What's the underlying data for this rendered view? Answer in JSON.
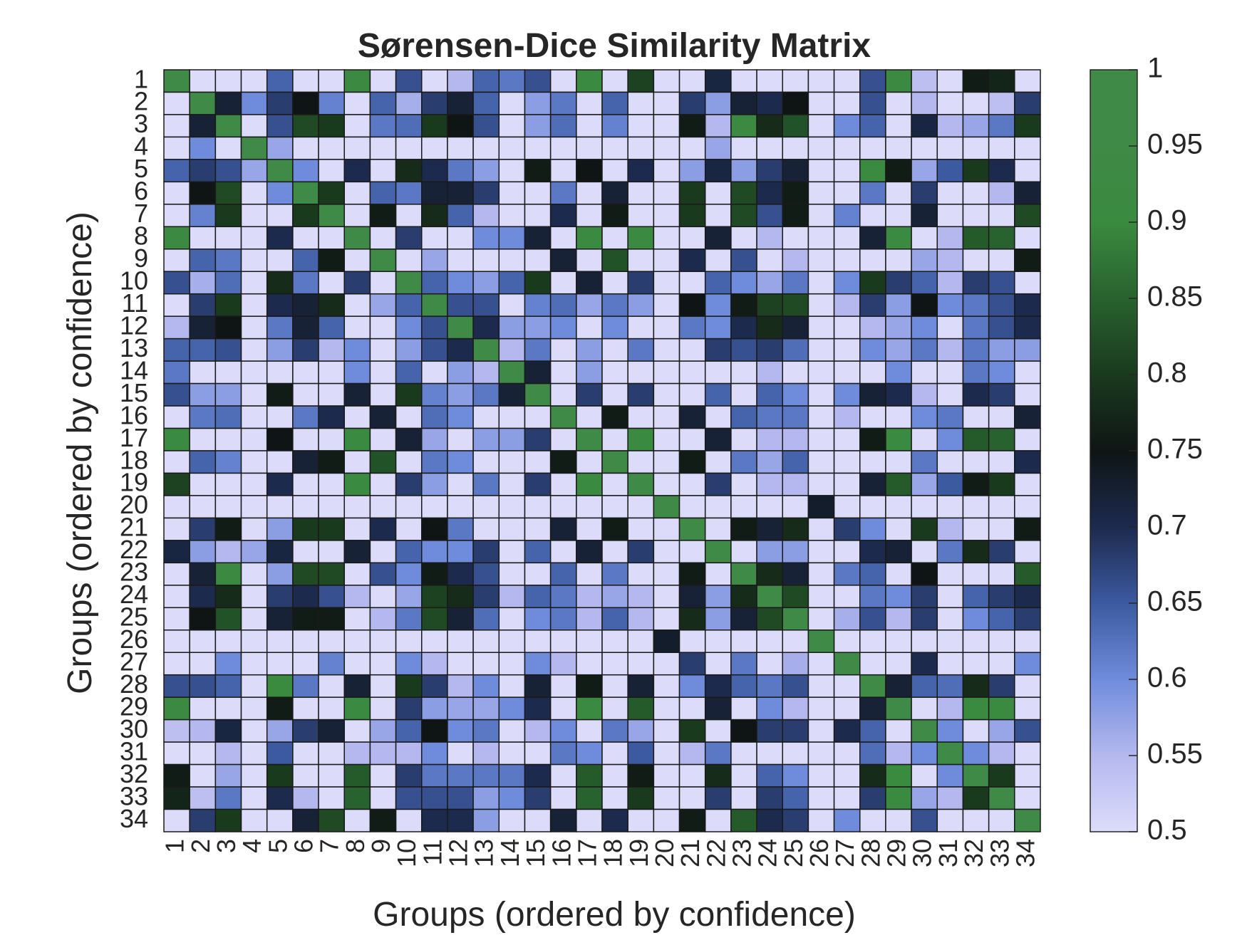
{
  "chart_data": {
    "type": "heatmap",
    "title": "Sørensen-Dice Similarity Matrix",
    "xlabel": "Groups (ordered by confidence)",
    "ylabel": "Groups (ordered by confidence)",
    "categories": [
      "1",
      "2",
      "3",
      "4",
      "5",
      "6",
      "7",
      "8",
      "9",
      "10",
      "11",
      "12",
      "13",
      "14",
      "15",
      "16",
      "17",
      "18",
      "19",
      "20",
      "21",
      "22",
      "23",
      "24",
      "25",
      "26",
      "27",
      "28",
      "29",
      "30",
      "31",
      "32",
      "33",
      "34"
    ],
    "clim": [
      0.5,
      1
    ],
    "colorbar": {
      "ticks": [
        0.5,
        0.55,
        0.6,
        0.65,
        0.7,
        0.75,
        0.8,
        0.85,
        0.9,
        0.95,
        1
      ],
      "tick_labels": [
        "0.5",
        "0.55",
        "0.6",
        "0.65",
        "0.7",
        "0.75",
        "0.8",
        "0.85",
        "0.9",
        "0.95",
        "1"
      ],
      "colormap": [
        [
          0.5,
          "#dcdcfa"
        ],
        [
          0.55,
          "#b4b8ee"
        ],
        [
          0.6,
          "#6f8cdc"
        ],
        [
          0.65,
          "#3c5aa0"
        ],
        [
          0.7,
          "#1c2a4e"
        ],
        [
          0.75,
          "#0f1514"
        ],
        [
          0.8,
          "#1a3a1e"
        ],
        [
          0.85,
          "#28622e"
        ],
        [
          0.9,
          "#3a8a40"
        ],
        [
          0.95,
          "#3f8a46"
        ],
        [
          1.0,
          "#3f8a46"
        ]
      ]
    },
    "matrix": [
      [
        1,
        0.5,
        0.5,
        0.5,
        0.64,
        0.5,
        0.5,
        0.92,
        0.5,
        0.66,
        0.5,
        0.55,
        0.64,
        0.62,
        0.66,
        0.5,
        0.91,
        0.5,
        0.81,
        0.5,
        0.5,
        0.71,
        0.5,
        0.5,
        0.5,
        0.5,
        0.5,
        0.66,
        0.92,
        0.54,
        0.5,
        0.76,
        0.77,
        0.5
      ],
      [
        0.5,
        1,
        0.72,
        0.6,
        0.68,
        0.75,
        0.61,
        0.5,
        0.64,
        0.56,
        0.68,
        0.72,
        0.64,
        0.5,
        0.58,
        0.62,
        0.5,
        0.64,
        0.5,
        0.5,
        0.68,
        0.58,
        0.72,
        0.7,
        0.75,
        0.5,
        0.5,
        0.66,
        0.5,
        0.55,
        0.5,
        0.5,
        0.54,
        0.68
      ],
      [
        0.5,
        0.72,
        1,
        0.5,
        0.66,
        0.82,
        0.8,
        0.5,
        0.62,
        0.63,
        0.8,
        0.75,
        0.66,
        0.5,
        0.58,
        0.63,
        0.5,
        0.61,
        0.5,
        0.5,
        0.76,
        0.55,
        0.92,
        0.78,
        0.83,
        0.5,
        0.6,
        0.64,
        0.5,
        0.71,
        0.55,
        0.57,
        0.62,
        0.8
      ],
      [
        0.5,
        0.6,
        0.5,
        1,
        0.57,
        0.5,
        0.5,
        0.5,
        0.5,
        0.5,
        0.5,
        0.5,
        0.5,
        0.5,
        0.5,
        0.5,
        0.5,
        0.5,
        0.5,
        0.5,
        0.5,
        0.57,
        0.5,
        0.5,
        0.5,
        0.5,
        0.5,
        0.5,
        0.5,
        0.5,
        0.5,
        0.5,
        0.5,
        0.5
      ],
      [
        0.64,
        0.68,
        0.66,
        0.57,
        1,
        0.6,
        0.5,
        0.7,
        0.5,
        0.78,
        0.7,
        0.62,
        0.58,
        0.5,
        0.76,
        0.5,
        0.75,
        0.5,
        0.7,
        0.5,
        0.58,
        0.71,
        0.58,
        0.68,
        0.72,
        0.5,
        0.5,
        0.9,
        0.76,
        0.57,
        0.65,
        0.8,
        0.7,
        0.5
      ],
      [
        0.5,
        0.75,
        0.82,
        0.5,
        0.6,
        1,
        0.8,
        0.5,
        0.64,
        0.62,
        0.72,
        0.72,
        0.68,
        0.5,
        0.5,
        0.62,
        0.5,
        0.72,
        0.5,
        0.5,
        0.8,
        0.5,
        0.82,
        0.7,
        0.76,
        0.5,
        0.5,
        0.62,
        0.5,
        0.68,
        0.5,
        0.5,
        0.55,
        0.72
      ],
      [
        0.5,
        0.61,
        0.8,
        0.5,
        0.5,
        0.8,
        1,
        0.5,
        0.76,
        0.5,
        0.78,
        0.64,
        0.55,
        0.5,
        0.5,
        0.7,
        0.5,
        0.76,
        0.5,
        0.5,
        0.8,
        0.5,
        0.82,
        0.66,
        0.76,
        0.5,
        0.61,
        0.5,
        0.5,
        0.72,
        0.5,
        0.5,
        0.5,
        0.82
      ],
      [
        0.92,
        0.5,
        0.5,
        0.5,
        0.7,
        0.5,
        0.5,
        1,
        0.5,
        0.68,
        0.5,
        0.5,
        0.6,
        0.6,
        0.72,
        0.5,
        0.91,
        0.5,
        0.91,
        0.5,
        0.5,
        0.72,
        0.5,
        0.55,
        0.5,
        0.5,
        0.5,
        0.72,
        0.91,
        0.5,
        0.55,
        0.84,
        0.85,
        0.5
      ],
      [
        0.5,
        0.64,
        0.62,
        0.5,
        0.5,
        0.64,
        0.76,
        0.5,
        1,
        0.5,
        0.57,
        0.5,
        0.5,
        0.5,
        0.5,
        0.72,
        0.5,
        0.83,
        0.5,
        0.5,
        0.7,
        0.5,
        0.66,
        0.5,
        0.55,
        0.5,
        0.5,
        0.5,
        0.5,
        0.57,
        0.55,
        0.5,
        0.5,
        0.76
      ],
      [
        0.66,
        0.56,
        0.63,
        0.5,
        0.78,
        0.62,
        0.5,
        0.68,
        0.5,
        1,
        0.64,
        0.6,
        0.58,
        0.64,
        0.8,
        0.5,
        0.72,
        0.5,
        0.68,
        0.5,
        0.5,
        0.64,
        0.6,
        0.57,
        0.62,
        0.5,
        0.6,
        0.8,
        0.68,
        0.64,
        0.55,
        0.68,
        0.66,
        0.5
      ],
      [
        0.5,
        0.68,
        0.8,
        0.5,
        0.7,
        0.72,
        0.78,
        0.5,
        0.57,
        0.64,
        1,
        0.66,
        0.66,
        0.5,
        0.61,
        0.63,
        0.57,
        0.62,
        0.58,
        0.5,
        0.75,
        0.6,
        0.76,
        0.81,
        0.82,
        0.5,
        0.55,
        0.68,
        0.58,
        0.75,
        0.6,
        0.62,
        0.66,
        0.7
      ],
      [
        0.55,
        0.72,
        0.75,
        0.5,
        0.62,
        0.72,
        0.64,
        0.5,
        0.5,
        0.6,
        0.66,
        1,
        0.7,
        0.58,
        0.58,
        0.6,
        0.5,
        0.6,
        0.5,
        0.5,
        0.62,
        0.6,
        0.7,
        0.78,
        0.72,
        0.5,
        0.5,
        0.55,
        0.57,
        0.6,
        0.5,
        0.62,
        0.66,
        0.7
      ],
      [
        0.64,
        0.64,
        0.66,
        0.5,
        0.58,
        0.68,
        0.55,
        0.6,
        0.5,
        0.58,
        0.66,
        0.7,
        1,
        0.55,
        0.62,
        0.5,
        0.58,
        0.5,
        0.62,
        0.5,
        0.5,
        0.68,
        0.66,
        0.68,
        0.63,
        0.5,
        0.5,
        0.6,
        0.57,
        0.62,
        0.55,
        0.62,
        0.58,
        0.58
      ],
      [
        0.62,
        0.5,
        0.5,
        0.5,
        0.5,
        0.5,
        0.5,
        0.6,
        0.5,
        0.64,
        0.5,
        0.58,
        0.55,
        1,
        0.72,
        0.5,
        0.58,
        0.5,
        0.5,
        0.5,
        0.5,
        0.5,
        0.5,
        0.55,
        0.5,
        0.5,
        0.5,
        0.5,
        0.6,
        0.5,
        0.5,
        0.62,
        0.6,
        0.5
      ],
      [
        0.66,
        0.58,
        0.58,
        0.5,
        0.76,
        0.5,
        0.5,
        0.72,
        0.5,
        0.8,
        0.61,
        0.58,
        0.62,
        0.72,
        1,
        0.5,
        0.68,
        0.5,
        0.68,
        0.5,
        0.5,
        0.64,
        0.5,
        0.64,
        0.6,
        0.5,
        0.6,
        0.72,
        0.7,
        0.55,
        0.5,
        0.7,
        0.68,
        0.5
      ],
      [
        0.5,
        0.62,
        0.63,
        0.5,
        0.5,
        0.62,
        0.7,
        0.5,
        0.72,
        0.5,
        0.63,
        0.6,
        0.5,
        0.5,
        0.5,
        1,
        0.5,
        0.76,
        0.5,
        0.5,
        0.72,
        0.5,
        0.64,
        0.62,
        0.62,
        0.5,
        0.55,
        0.5,
        0.5,
        0.6,
        0.62,
        0.5,
        0.5,
        0.72
      ],
      [
        0.91,
        0.5,
        0.5,
        0.5,
        0.75,
        0.5,
        0.5,
        0.91,
        0.5,
        0.72,
        0.57,
        0.5,
        0.58,
        0.58,
        0.68,
        0.5,
        1,
        0.5,
        0.91,
        0.5,
        0.5,
        0.72,
        0.5,
        0.55,
        0.55,
        0.5,
        0.5,
        0.76,
        0.91,
        0.5,
        0.6,
        0.84,
        0.85,
        0.5
      ],
      [
        0.5,
        0.64,
        0.61,
        0.5,
        0.5,
        0.72,
        0.76,
        0.5,
        0.83,
        0.5,
        0.62,
        0.6,
        0.5,
        0.5,
        0.5,
        0.76,
        0.5,
        1,
        0.5,
        0.5,
        0.76,
        0.5,
        0.62,
        0.57,
        0.64,
        0.5,
        0.5,
        0.5,
        0.5,
        0.62,
        0.5,
        0.5,
        0.5,
        0.7
      ],
      [
        0.81,
        0.5,
        0.5,
        0.5,
        0.7,
        0.5,
        0.5,
        0.91,
        0.5,
        0.68,
        0.58,
        0.5,
        0.62,
        0.5,
        0.68,
        0.5,
        0.91,
        0.5,
        1,
        0.5,
        0.5,
        0.68,
        0.5,
        0.55,
        0.55,
        0.5,
        0.5,
        0.72,
        0.84,
        0.57,
        0.65,
        0.76,
        0.8,
        0.5
      ],
      [
        0.5,
        0.5,
        0.5,
        0.5,
        0.5,
        0.5,
        0.5,
        0.5,
        0.5,
        0.5,
        0.5,
        0.5,
        0.5,
        0.5,
        0.5,
        0.5,
        0.5,
        0.5,
        0.5,
        1,
        0.5,
        0.5,
        0.5,
        0.5,
        0.5,
        0.73,
        0.5,
        0.5,
        0.5,
        0.5,
        0.5,
        0.5,
        0.5,
        0.5
      ],
      [
        0.5,
        0.68,
        0.76,
        0.5,
        0.58,
        0.8,
        0.8,
        0.5,
        0.7,
        0.5,
        0.75,
        0.62,
        0.5,
        0.5,
        0.5,
        0.72,
        0.5,
        0.76,
        0.5,
        0.5,
        1,
        0.5,
        0.76,
        0.72,
        0.78,
        0.5,
        0.68,
        0.6,
        0.5,
        0.8,
        0.55,
        0.5,
        0.5,
        0.76
      ],
      [
        0.71,
        0.58,
        0.55,
        0.57,
        0.71,
        0.5,
        0.5,
        0.72,
        0.5,
        0.64,
        0.6,
        0.6,
        0.68,
        0.5,
        0.64,
        0.5,
        0.72,
        0.5,
        0.68,
        0.5,
        0.5,
        1,
        0.5,
        0.58,
        0.58,
        0.5,
        0.5,
        0.7,
        0.72,
        0.5,
        0.62,
        0.78,
        0.68,
        0.5
      ],
      [
        0.5,
        0.72,
        0.92,
        0.5,
        0.58,
        0.82,
        0.82,
        0.5,
        0.66,
        0.6,
        0.76,
        0.7,
        0.66,
        0.5,
        0.5,
        0.64,
        0.5,
        0.62,
        0.5,
        0.5,
        0.76,
        0.5,
        1,
        0.78,
        0.72,
        0.5,
        0.62,
        0.64,
        0.5,
        0.75,
        0.5,
        0.5,
        0.5,
        0.84
      ],
      [
        0.5,
        0.7,
        0.78,
        0.5,
        0.68,
        0.7,
        0.66,
        0.55,
        0.5,
        0.57,
        0.81,
        0.78,
        0.68,
        0.55,
        0.64,
        0.62,
        0.55,
        0.57,
        0.55,
        0.5,
        0.72,
        0.58,
        0.78,
        1,
        0.82,
        0.5,
        0.5,
        0.62,
        0.6,
        0.68,
        0.5,
        0.64,
        0.68,
        0.7
      ],
      [
        0.5,
        0.75,
        0.83,
        0.5,
        0.72,
        0.76,
        0.76,
        0.5,
        0.55,
        0.62,
        0.82,
        0.72,
        0.63,
        0.5,
        0.6,
        0.62,
        0.55,
        0.64,
        0.55,
        0.5,
        0.78,
        0.58,
        0.72,
        0.82,
        1,
        0.5,
        0.56,
        0.66,
        0.55,
        0.68,
        0.5,
        0.6,
        0.64,
        0.68
      ],
      [
        0.5,
        0.5,
        0.5,
        0.5,
        0.5,
        0.5,
        0.5,
        0.5,
        0.5,
        0.5,
        0.5,
        0.5,
        0.5,
        0.5,
        0.5,
        0.5,
        0.5,
        0.5,
        0.5,
        0.73,
        0.5,
        0.5,
        0.5,
        0.5,
        0.5,
        1,
        0.5,
        0.5,
        0.5,
        0.5,
        0.5,
        0.5,
        0.5,
        0.5
      ],
      [
        0.5,
        0.5,
        0.6,
        0.5,
        0.5,
        0.5,
        0.61,
        0.5,
        0.5,
        0.6,
        0.55,
        0.5,
        0.5,
        0.5,
        0.6,
        0.55,
        0.5,
        0.5,
        0.5,
        0.5,
        0.68,
        0.5,
        0.62,
        0.5,
        0.56,
        0.5,
        1,
        0.5,
        0.5,
        0.7,
        0.5,
        0.5,
        0.5,
        0.6
      ],
      [
        0.66,
        0.66,
        0.64,
        0.5,
        0.9,
        0.62,
        0.5,
        0.72,
        0.5,
        0.8,
        0.68,
        0.55,
        0.6,
        0.5,
        0.72,
        0.5,
        0.76,
        0.5,
        0.72,
        0.5,
        0.6,
        0.7,
        0.64,
        0.62,
        0.66,
        0.5,
        0.5,
        1,
        0.72,
        0.64,
        0.63,
        0.78,
        0.68,
        0.5
      ],
      [
        0.92,
        0.5,
        0.5,
        0.5,
        0.76,
        0.5,
        0.5,
        0.91,
        0.5,
        0.68,
        0.58,
        0.57,
        0.57,
        0.6,
        0.7,
        0.5,
        0.91,
        0.5,
        0.84,
        0.5,
        0.5,
        0.72,
        0.5,
        0.6,
        0.55,
        0.5,
        0.5,
        0.72,
        1,
        0.5,
        0.55,
        0.9,
        0.9,
        0.5
      ],
      [
        0.54,
        0.55,
        0.71,
        0.5,
        0.57,
        0.68,
        0.72,
        0.5,
        0.57,
        0.64,
        0.75,
        0.6,
        0.62,
        0.5,
        0.55,
        0.6,
        0.5,
        0.62,
        0.57,
        0.5,
        0.8,
        0.5,
        0.75,
        0.68,
        0.68,
        0.5,
        0.7,
        0.64,
        0.5,
        1,
        0.6,
        0.5,
        0.57,
        0.66
      ],
      [
        0.5,
        0.5,
        0.55,
        0.5,
        0.65,
        0.5,
        0.5,
        0.55,
        0.55,
        0.55,
        0.6,
        0.5,
        0.55,
        0.5,
        0.5,
        0.62,
        0.6,
        0.5,
        0.65,
        0.5,
        0.55,
        0.62,
        0.5,
        0.5,
        0.5,
        0.5,
        0.5,
        0.63,
        0.55,
        0.6,
        1,
        0.6,
        0.55,
        0.5
      ],
      [
        0.76,
        0.5,
        0.57,
        0.5,
        0.8,
        0.5,
        0.5,
        0.84,
        0.5,
        0.68,
        0.62,
        0.62,
        0.62,
        0.62,
        0.7,
        0.5,
        0.84,
        0.5,
        0.76,
        0.5,
        0.5,
        0.78,
        0.5,
        0.64,
        0.6,
        0.5,
        0.5,
        0.78,
        0.9,
        0.5,
        0.6,
        1,
        0.8,
        0.5
      ],
      [
        0.77,
        0.54,
        0.62,
        0.5,
        0.7,
        0.55,
        0.5,
        0.85,
        0.5,
        0.66,
        0.66,
        0.66,
        0.58,
        0.6,
        0.68,
        0.5,
        0.85,
        0.5,
        0.8,
        0.5,
        0.5,
        0.68,
        0.5,
        0.68,
        0.64,
        0.5,
        0.5,
        0.68,
        0.9,
        0.57,
        0.55,
        0.8,
        1,
        0.5
      ],
      [
        0.5,
        0.68,
        0.8,
        0.5,
        0.5,
        0.72,
        0.82,
        0.5,
        0.76,
        0.5,
        0.7,
        0.7,
        0.58,
        0.5,
        0.5,
        0.72,
        0.5,
        0.7,
        0.5,
        0.5,
        0.76,
        0.5,
        0.84,
        0.7,
        0.68,
        0.5,
        0.6,
        0.5,
        0.5,
        0.66,
        0.5,
        0.5,
        0.5,
        1
      ]
    ]
  }
}
